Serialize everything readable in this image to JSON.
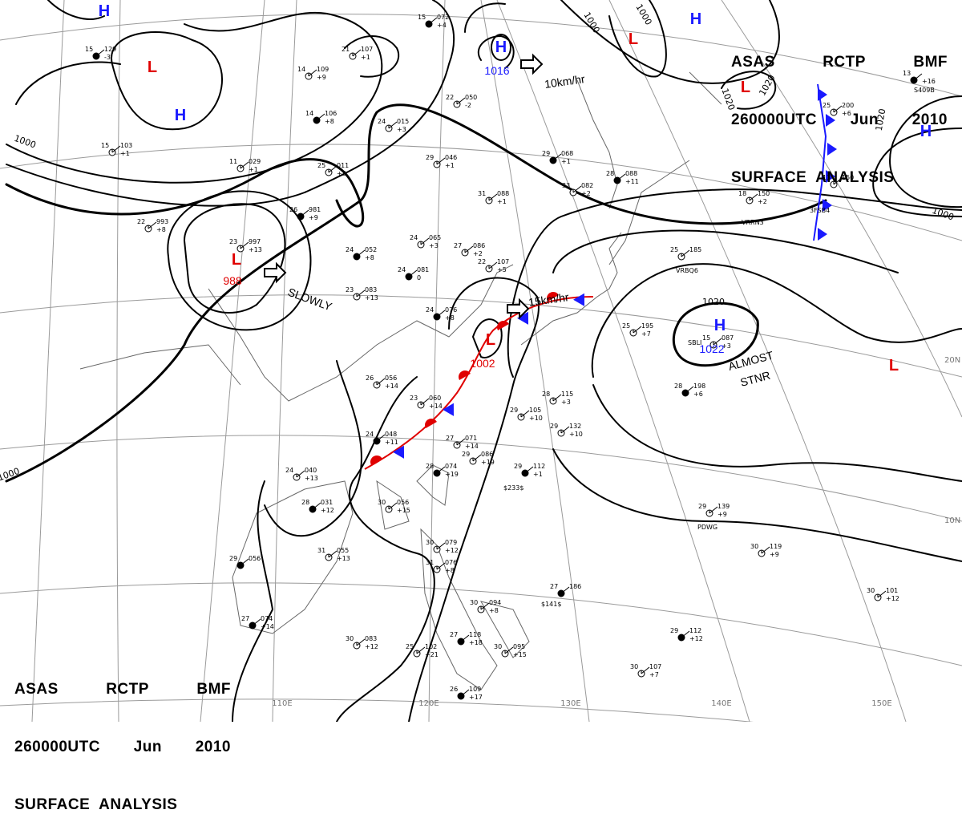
{
  "header_top_right": {
    "line1": [
      "ASAS",
      "RCTP",
      "BMF"
    ],
    "line2": [
      "260000UTC",
      "Jun",
      "2010"
    ],
    "line3": "SURFACE  ANALYSIS"
  },
  "header_bottom_left": {
    "line1": [
      "ASAS",
      "RCTP",
      "BMF"
    ],
    "line2": [
      "260000UTC",
      "Jun",
      "2010"
    ],
    "line3": "SURFACE  ANALYSIS"
  },
  "colors": {
    "high": "#1a1aff",
    "low": "#e00000",
    "isobar": "#000000",
    "grid": "#9a9a9a",
    "coast": "#666666"
  },
  "longitude_labels": [
    "110E",
    "120E",
    "130E",
    "140E",
    "150E"
  ],
  "latitude_labels": [
    "20N",
    "10N"
  ],
  "pressure_centers": [
    {
      "type": "H",
      "value": ""
    },
    {
      "type": "L",
      "value": ""
    },
    {
      "type": "H",
      "value": ""
    },
    {
      "type": "L",
      "value": "988"
    },
    {
      "type": "H",
      "value": "1016"
    },
    {
      "type": "L",
      "value": ""
    },
    {
      "type": "H",
      "value": ""
    },
    {
      "type": "L",
      "value": ""
    },
    {
      "type": "H",
      "value": ""
    },
    {
      "type": "H",
      "value": "1022"
    },
    {
      "type": "L",
      "value": "1002"
    },
    {
      "type": "L",
      "value": ""
    }
  ],
  "isobar_labels": [
    "1000",
    "1000",
    "1000",
    "1000",
    "1020",
    "1020",
    "1020",
    "1000"
  ],
  "motion_labels": [
    "10km/hr",
    "SLOWLY",
    "15km/hr",
    "ALMOST",
    "STNR"
  ],
  "station_plots": [
    {
      "t": "15",
      "p": "072",
      "d": "+4"
    },
    {
      "t": "14",
      "p": "109",
      "d": "+9"
    },
    {
      "t": "21",
      "p": "107",
      "d": "+1"
    },
    {
      "t": "15",
      "p": "129",
      "d": "-3"
    },
    {
      "t": "22",
      "p": "050",
      "d": "-2"
    },
    {
      "t": "15",
      "p": "103",
      "d": "+1"
    },
    {
      "t": "14",
      "p": "106",
      "d": "+8"
    },
    {
      "t": "24",
      "p": "015",
      "d": "+3"
    },
    {
      "t": "29",
      "p": "046",
      "d": "+1"
    },
    {
      "t": "29",
      "p": "068",
      "d": "+1"
    },
    {
      "t": "31",
      "p": "088",
      "d": "+1"
    },
    {
      "t": "33",
      "p": "082",
      "d": "+2"
    },
    {
      "t": "28",
      "p": "088",
      "d": "+11"
    },
    {
      "t": "11",
      "p": "029",
      "d": "+1"
    },
    {
      "t": "25",
      "p": "011",
      "d": "+3"
    },
    {
      "t": "26",
      "p": "981",
      "d": "+9"
    },
    {
      "t": "22",
      "p": "993",
      "d": "+8"
    },
    {
      "t": "23",
      "p": "997",
      "d": "+13"
    },
    {
      "t": "24",
      "p": "052",
      "d": "+8"
    },
    {
      "t": "24",
      "p": "065",
      "d": "+3"
    },
    {
      "t": "27",
      "p": "086",
      "d": "+2"
    },
    {
      "t": "24",
      "p": "081",
      "d": "0"
    },
    {
      "t": "23",
      "p": "083",
      "d": "+13"
    },
    {
      "t": "22",
      "p": "107",
      "d": "+5"
    },
    {
      "t": "24",
      "p": "076",
      "d": "+8"
    },
    {
      "t": "26",
      "p": "056",
      "d": "+14"
    },
    {
      "t": "23",
      "p": "060",
      "d": "+14"
    },
    {
      "t": "24",
      "p": "048",
      "d": "+11"
    },
    {
      "t": "27",
      "p": "071",
      "d": "+14"
    },
    {
      "t": "29",
      "p": "086",
      "d": "+19"
    },
    {
      "t": "28",
      "p": "074",
      "d": "+19"
    },
    {
      "t": "29",
      "p": "105",
      "d": "+10"
    },
    {
      "t": "29",
      "p": "132",
      "d": "+10"
    },
    {
      "t": "29",
      "p": "112",
      "d": "+1"
    },
    {
      "t": "28",
      "p": "115",
      "d": "+3"
    },
    {
      "t": "24",
      "p": "040",
      "d": "+13"
    },
    {
      "t": "28",
      "p": "031",
      "d": "+12"
    },
    {
      "t": "30",
      "p": "056",
      "d": "+15"
    },
    {
      "t": "31",
      "p": "055",
      "d": "+13"
    },
    {
      "t": "29",
      "p": "056",
      "d": ""
    },
    {
      "t": "30",
      "p": "079",
      "d": "+12"
    },
    {
      "t": "31",
      "p": "076",
      "d": "+8"
    },
    {
      "t": "27",
      "p": "074",
      "d": "+14"
    },
    {
      "t": "30",
      "p": "083",
      "d": "+12"
    },
    {
      "t": "25",
      "p": "102",
      "d": "+21"
    },
    {
      "t": "27",
      "p": "118",
      "d": "+18"
    },
    {
      "t": "30",
      "p": "094",
      "d": "+8"
    },
    {
      "t": "30",
      "p": "095",
      "d": "+15"
    },
    {
      "t": "27",
      "p": "186",
      "d": ""
    },
    {
      "t": "25",
      "p": "185",
      "d": ""
    },
    {
      "t": "25",
      "p": "195",
      "d": "+7"
    },
    {
      "t": "28",
      "p": "198",
      "d": "+6"
    },
    {
      "t": "29",
      "p": "139",
      "d": "+9"
    },
    {
      "t": "30",
      "p": "119",
      "d": "+9"
    },
    {
      "t": "29",
      "p": "112",
      "d": "+12"
    },
    {
      "t": "30",
      "p": "107",
      "d": "+7"
    },
    {
      "t": "30",
      "p": "101",
      "d": "+12"
    },
    {
      "t": "26",
      "p": "109",
      "d": "+17"
    },
    {
      "t": "18",
      "p": "150",
      "d": "+2"
    },
    {
      "t": "13",
      "p": "150",
      "d": ""
    },
    {
      "t": "13",
      "p": "",
      "d": "+16"
    },
    {
      "t": "25",
      "p": "200",
      "d": "+6"
    },
    {
      "t": "15",
      "p": "087",
      "d": "+3"
    }
  ],
  "ship_ids": [
    "VRRN3",
    "3FSB4",
    "VRBQ6",
    "SBLI",
    "PDWG",
    "$141$",
    "$233$",
    "S409B"
  ]
}
